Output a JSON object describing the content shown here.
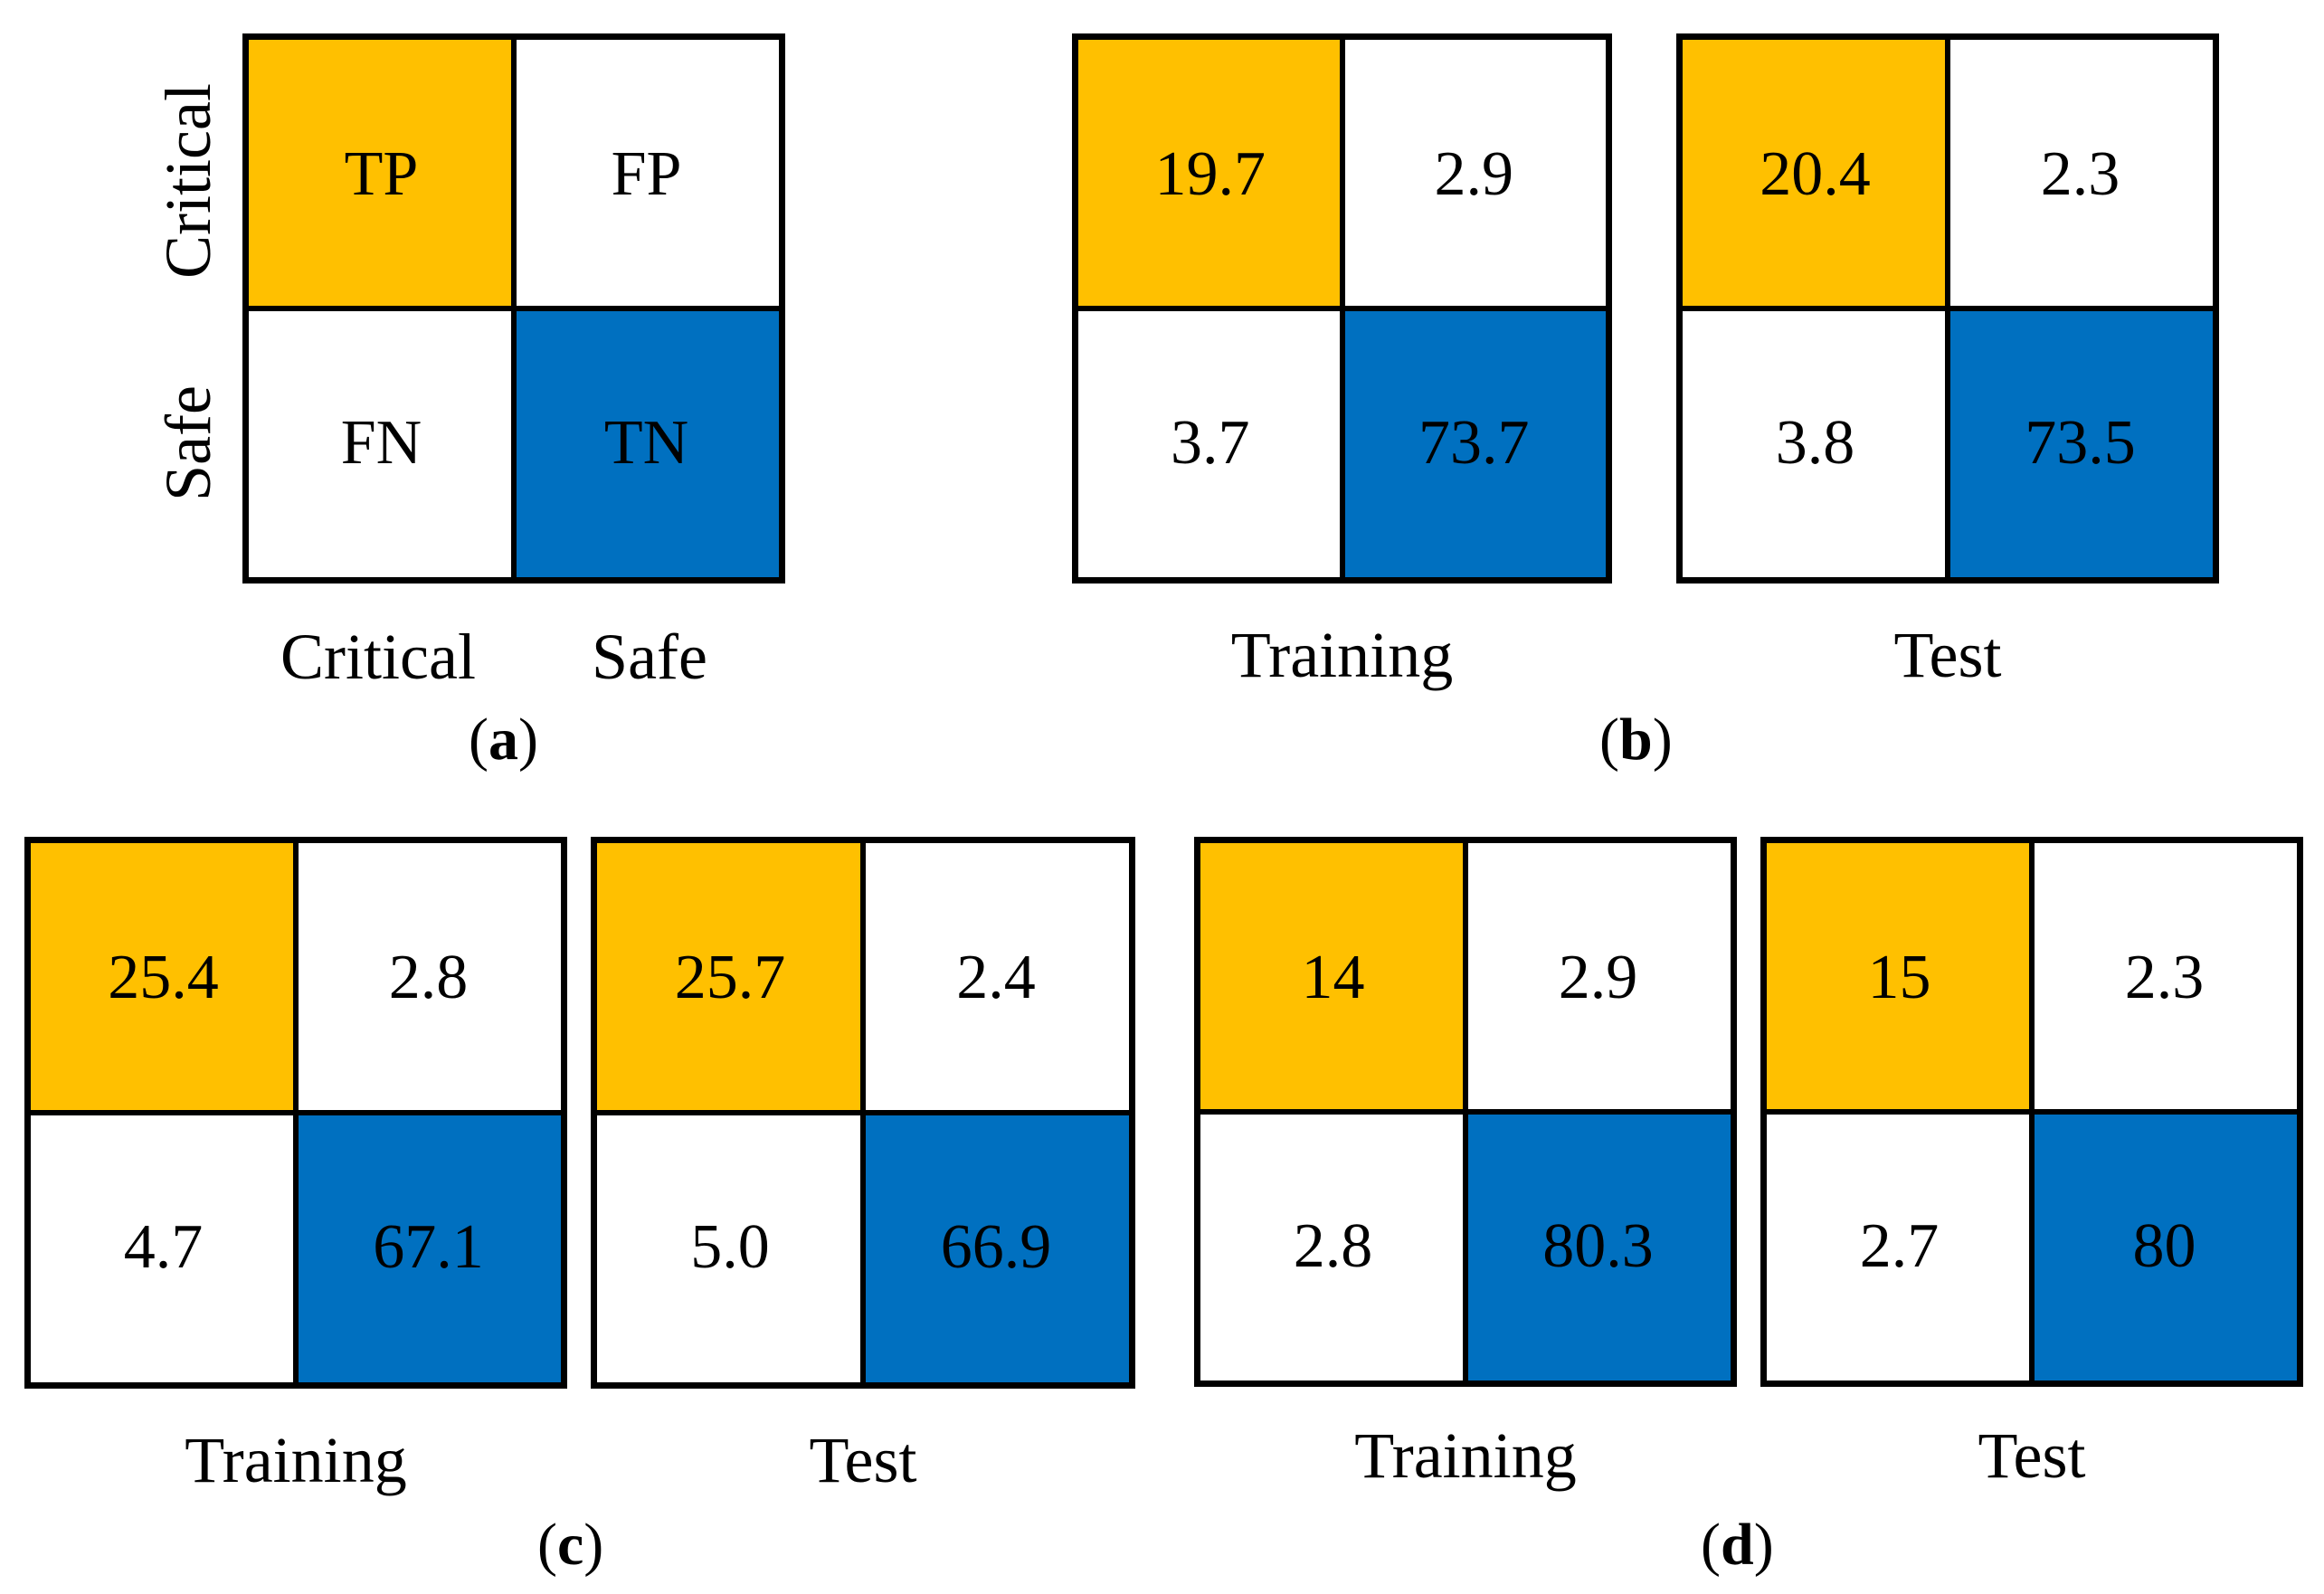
{
  "colors": {
    "tp": "#FFC000",
    "tn": "#0070C0",
    "off": "#FFFFFF",
    "border": "#000000"
  },
  "chart_data": {
    "type": "table",
    "panels": [
      {
        "id": "a",
        "label": "a",
        "row_labels": [
          "Critical",
          "Safe"
        ],
        "col_labels": [
          "Critical",
          "Safe"
        ],
        "matrices": [
          {
            "name": "",
            "cells": [
              [
                "TP",
                "FP"
              ],
              [
                "FN",
                "TN"
              ]
            ]
          }
        ]
      },
      {
        "id": "b",
        "label": "b",
        "matrices": [
          {
            "name": "Training",
            "cells": [
              [
                "19.7",
                "2.9"
              ],
              [
                "3.7",
                "73.7"
              ]
            ]
          },
          {
            "name": "Test",
            "cells": [
              [
                "20.4",
                "2.3"
              ],
              [
                "3.8",
                "73.5"
              ]
            ]
          }
        ]
      },
      {
        "id": "c",
        "label": "c",
        "matrices": [
          {
            "name": "Training",
            "cells": [
              [
                "25.4",
                "2.8"
              ],
              [
                "4.7",
                "67.1"
              ]
            ]
          },
          {
            "name": "Test",
            "cells": [
              [
                "25.7",
                "2.4"
              ],
              [
                "5.0",
                "66.9"
              ]
            ]
          }
        ]
      },
      {
        "id": "d",
        "label": "d",
        "matrices": [
          {
            "name": "Training",
            "cells": [
              [
                "14",
                "2.9"
              ],
              [
                "2.8",
                "80.3"
              ]
            ]
          },
          {
            "name": "Test",
            "cells": [
              [
                "15",
                "2.3"
              ],
              [
                "2.7",
                "80"
              ]
            ]
          }
        ]
      }
    ]
  }
}
